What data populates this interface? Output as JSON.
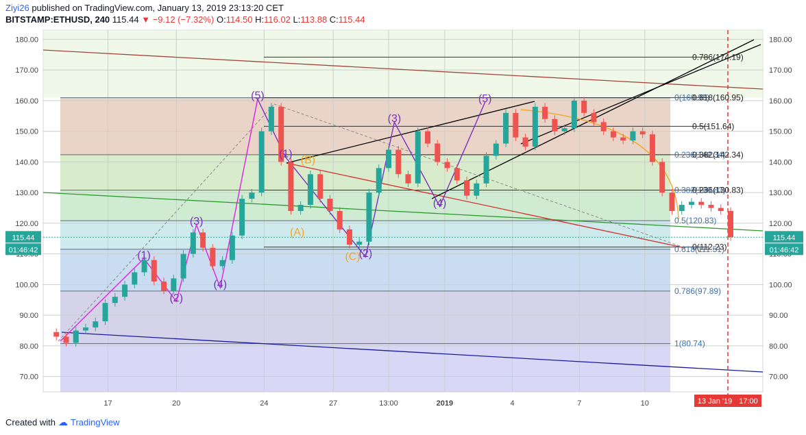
{
  "header": {
    "author": "Ziyi26",
    "published_text": "published on TradingView.com, January 13, 2019 23:13:20 CET",
    "symbol": "BITSTAMP:ETHUSD, 240",
    "last": "115.44",
    "change": "▼ −9.12 (−7.32%)",
    "o_label": "O:",
    "o": "114.50",
    "h_label": "H:",
    "h": "116.02",
    "l_label": "L:",
    "l": "113.88",
    "c_label": "C:",
    "c": "115.44"
  },
  "footer": {
    "created_with": "Created with",
    "brand": "TradingView"
  },
  "colors": {
    "up": "#26a69a",
    "down": "#ef5350",
    "impulse": "#e020e0",
    "wave": "#7b2fbe",
    "corrective": "#f5a623",
    "trend": "#000000",
    "red_line": "#d32f2f",
    "blue_line": "#1a1aa0"
  },
  "chart_data": {
    "type": "candlestick",
    "x_ticks": [
      "17",
      "20",
      "24",
      "27",
      "13:00",
      "2019",
      "4",
      "7",
      "10"
    ],
    "y_ticks": [
      "70.00",
      "80.00",
      "90.00",
      "100.00",
      "110.00",
      "120.00",
      "130.00",
      "140.00",
      "150.00",
      "160.00",
      "170.00",
      "180.00"
    ],
    "ylim": [
      65,
      183
    ],
    "last_price_label": "115.44",
    "countdown_label": "01:46:42",
    "time_labels": [
      "13 Jan '19",
      "17:00"
    ],
    "price_path": [
      84.5,
      83,
      81,
      85,
      86,
      88,
      94,
      96,
      100,
      104,
      108,
      101,
      98,
      102,
      110,
      117,
      112,
      106,
      108,
      116,
      128,
      130,
      150,
      158,
      140,
      124,
      126,
      136,
      128,
      124,
      118,
      113,
      114,
      130,
      138,
      144,
      136,
      133,
      150,
      146,
      140,
      138,
      134,
      129,
      133,
      142,
      146,
      156,
      148,
      145,
      158,
      154,
      150,
      151,
      160,
      156,
      153,
      150,
      148,
      147,
      150,
      149,
      140,
      130,
      124,
      126,
      127,
      126,
      125,
      124,
      115.5
    ],
    "fib_left": [
      {
        "label": "0(160.95)",
        "value": 160.95
      },
      {
        "label": "0.236(142.34)",
        "value": 142.34
      },
      {
        "label": "0.382(130.83)",
        "value": 130.83
      },
      {
        "label": "0.5(120.83)",
        "value": 120.83
      },
      {
        "label": "0.618(111.51)",
        "value": 111.51
      },
      {
        "label": "0.786(97.89)",
        "value": 97.89
      },
      {
        "label": "1(80.74)",
        "value": 80.74
      }
    ],
    "fib_right": [
      {
        "label": "0.786(174.19)",
        "value": 174.19
      },
      {
        "label": "0.618(160.95)",
        "value": 160.95
      },
      {
        "label": "0.5(151.64)",
        "value": 151.64
      },
      {
        "label": "0.382(142.34)",
        "value": 142.34
      },
      {
        "label": "0.236(130.83)",
        "value": 130.83
      },
      {
        "label": "0(112.23)",
        "value": 112.23
      }
    ],
    "wave_labels": [
      {
        "text": "(1)",
        "color": "#7b2fbe",
        "x": 0.14,
        "y": 108.5
      },
      {
        "text": "(2)",
        "color": "#7b2fbe",
        "x": 0.185,
        "y": 94.5
      },
      {
        "text": "(3)",
        "color": "#7b2fbe",
        "x": 0.213,
        "y": 119.5
      },
      {
        "text": "(4)",
        "color": "#7b2fbe",
        "x": 0.246,
        "y": 99.0
      },
      {
        "text": "(5)",
        "color": "#7b2fbe",
        "x": 0.298,
        "y": 160.5
      },
      {
        "text": "(1)",
        "color": "#7b2fbe",
        "x": 0.337,
        "y": 141.5
      },
      {
        "text": "(B)",
        "color": "#f5a623",
        "x": 0.368,
        "y": 139.5
      },
      {
        "text": "(A)",
        "color": "#f5a623",
        "x": 0.353,
        "y": 116.0
      },
      {
        "text": "(C)",
        "color": "#f5a623",
        "x": 0.43,
        "y": 108.0
      },
      {
        "text": "(2)",
        "color": "#7b2fbe",
        "x": 0.448,
        "y": 109.0
      },
      {
        "text": "(3)",
        "color": "#7b2fbe",
        "x": 0.488,
        "y": 153.0
      },
      {
        "text": "(4)",
        "color": "#7b2fbe",
        "x": 0.551,
        "y": 125.5
      },
      {
        "text": "(5)",
        "color": "#7b2fbe",
        "x": 0.614,
        "y": 159.5
      }
    ]
  }
}
